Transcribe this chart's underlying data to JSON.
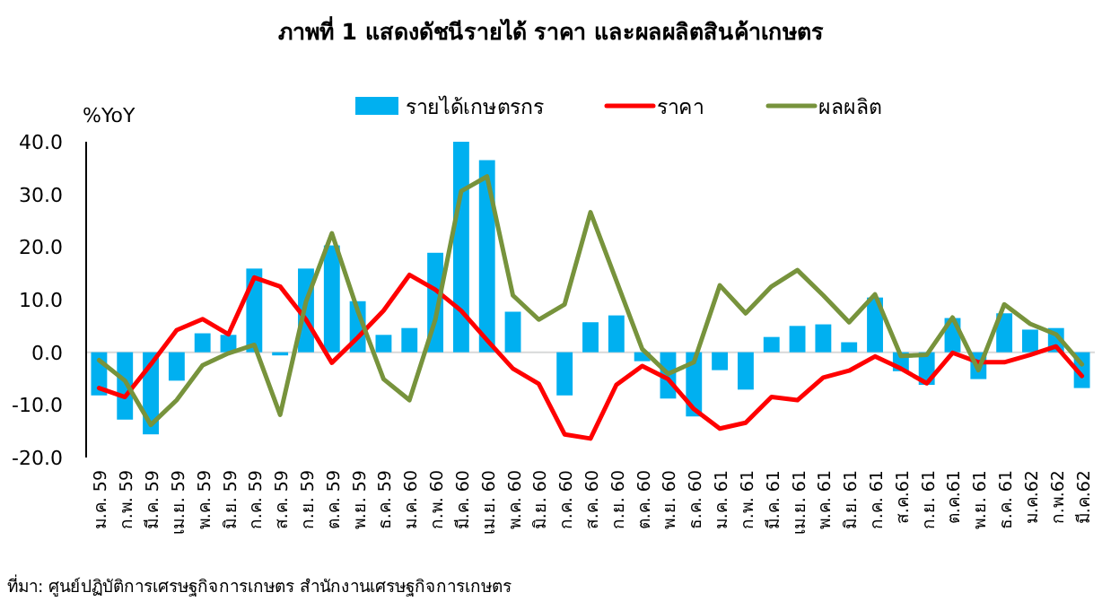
{
  "chart_data": {
    "type": "bar",
    "title": "ภาพที่ 1 แสดงดัชนีรายได้ ราคา และผลผลิตสินค้าเกษตร",
    "ylabel": "%YoY",
    "categories": [
      "ม.ค. 59",
      "ก.พ. 59",
      "มี.ค. 59",
      "เม.ย. 59",
      "พ.ค. 59",
      "มิ.ย. 59",
      "ก.ค. 59",
      "ส.ค. 59",
      "ก.ย. 59",
      "ต.ค. 59",
      "พ.ย. 59",
      "ธ.ค. 59",
      "ม.ค. 60",
      "ก.พ. 60",
      "มี.ค. 60",
      "เม.ย. 60",
      "พ.ค. 60",
      "มิ.ย. 60",
      "ก.ค. 60",
      "ส.ค. 60",
      "ก.ย. 60",
      "ต.ค. 60",
      "พ.ย. 60",
      "ธ.ค. 60",
      "ม.ค. 61",
      "ก.พ. 61",
      "มี.ค. 61",
      "เม.ย. 61",
      "พ.ค. 61",
      "มิ.ย. 61",
      "ก.ค. 61",
      "ส.ค.61",
      "ก.ย. 61",
      "ต.ค.61",
      "พ.ย. 61",
      "ธ.ค. 61",
      "ม.ค.62",
      "ก.พ.62",
      "มี.ค.62"
    ],
    "series": [
      {
        "name": "รายได้เกษตรกร",
        "color": "#00b0f0",
        "values": [
          -8.2,
          -12.8,
          -15.6,
          -5.4,
          3.6,
          3.3,
          15.9,
          -0.6,
          15.9,
          20.3,
          9.7,
          3.3,
          4.6,
          18.9,
          40.0,
          36.5,
          7.7,
          0,
          -8.2,
          5.7,
          7.0,
          -1.7,
          -8.8,
          -12.2,
          -3.4,
          -7.1,
          2.9,
          5.0,
          5.3,
          1.9,
          10.4,
          -3.6,
          -6.2,
          6.5,
          -5.1,
          7.4,
          4.3,
          4.6,
          -6.8
        ]
      },
      {
        "name": "ราคา",
        "type": "line",
        "color": "#ff0000",
        "values": [
          -6.8,
          -8.5,
          -2.3,
          4.2,
          6.3,
          3.4,
          14.2,
          12.5,
          6.2,
          -2.0,
          2.8,
          7.9,
          14.7,
          11.9,
          7.9,
          2.3,
          -3.1,
          -6.0,
          -15.6,
          -16.4,
          -6.2,
          -2.6,
          -5.1,
          -10.8,
          -14.5,
          -13.4,
          -8.5,
          -9.1,
          -4.8,
          -3.5,
          -0.8,
          -3.1,
          -5.9,
          -0.1,
          -1.9,
          -1.9,
          -0.5,
          1.1,
          -4.5
        ]
      },
      {
        "name": "ผลผลิต",
        "type": "line",
        "color": "#77933c",
        "values": [
          -1.5,
          -5.4,
          -13.8,
          -9.1,
          -2.5,
          -0.2,
          1.4,
          -11.9,
          9.6,
          22.6,
          7.9,
          -5.1,
          -9.1,
          6.2,
          30.6,
          33.4,
          10.8,
          6.2,
          9.1,
          26.6,
          13.6,
          0.6,
          -4.1,
          -1.9,
          12.7,
          7.4,
          12.5,
          15.6,
          10.8,
          5.7,
          11.0,
          -0.7,
          -0.5,
          6.6,
          -3.4,
          9.1,
          5.4,
          3.4,
          -2.3
        ]
      }
    ],
    "ylim": [
      -20,
      40
    ],
    "yticks": [
      {
        "value": -20,
        "label": "-20.0"
      },
      {
        "value": -10,
        "label": "-10.0"
      },
      {
        "value": 0,
        "label": "0.0"
      },
      {
        "value": 10,
        "label": "10.0"
      },
      {
        "value": 20,
        "label": "20.0"
      },
      {
        "value": 30,
        "label": "30.0"
      },
      {
        "value": 40,
        "label": "40.0"
      }
    ],
    "legend": "top",
    "annotations": [
      "ที่มา: ศูนย์ปฏิบัติการเศรษฐกิจการเกษตร สำนักงานเศรษฐกิจการเกษตร"
    ]
  }
}
